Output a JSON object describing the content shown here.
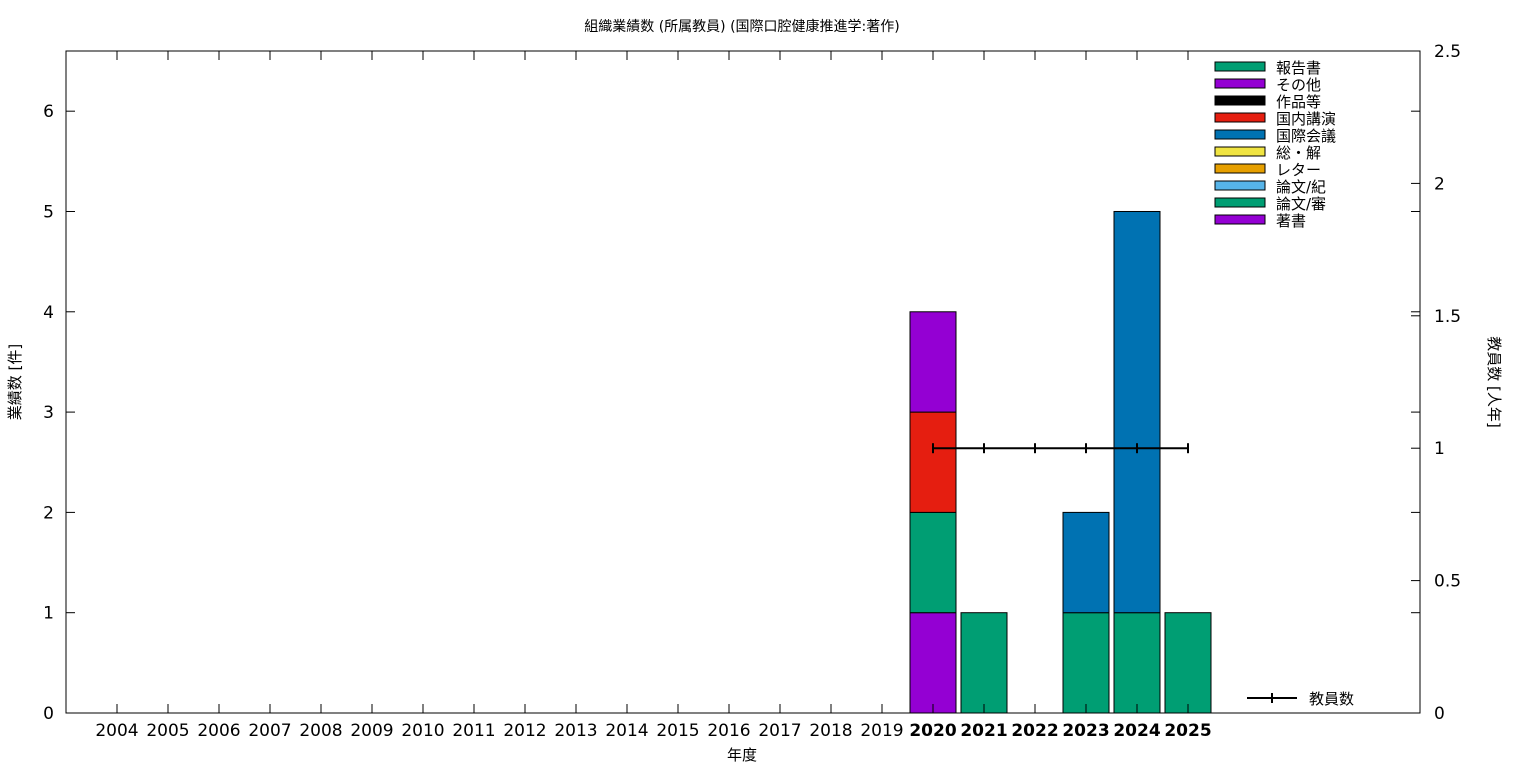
{
  "chart_data": {
    "type": "bar",
    "title": "組織業績数 (所属教員) (国際口腔健康推進学:著作)",
    "xlabel": "年度",
    "ylabel": "業績数 [件]",
    "y2label": "教員数 [人年]",
    "ylim": [
      0,
      6.6
    ],
    "y2lim": [
      0,
      2.5
    ],
    "yticks": [
      "0",
      "1",
      "2",
      "3",
      "4",
      "5",
      "6"
    ],
    "y2ticks": [
      "0",
      "0.5",
      "1",
      "1.5",
      "2",
      "2.5"
    ],
    "stacked": true,
    "categories": [
      "2004",
      "2005",
      "2006",
      "2007",
      "2008",
      "2009",
      "2010",
      "2011",
      "2012",
      "2013",
      "2014",
      "2015",
      "2016",
      "2017",
      "2018",
      "2019",
      "2020",
      "2021",
      "2022",
      "2023",
      "2024",
      "2025"
    ],
    "highlight_categories": [
      "2020",
      "2021",
      "2022",
      "2023",
      "2024",
      "2025"
    ],
    "legend_position": "top-right",
    "series": [
      {
        "name": "著書",
        "color": "#9400d3",
        "values": [
          0,
          0,
          0,
          0,
          0,
          0,
          0,
          0,
          0,
          0,
          0,
          0,
          0,
          0,
          0,
          0,
          1,
          0,
          0,
          0,
          0,
          0
        ]
      },
      {
        "name": "論文/審",
        "color": "#009e73",
        "values": [
          0,
          0,
          0,
          0,
          0,
          0,
          0,
          0,
          0,
          0,
          0,
          0,
          0,
          0,
          0,
          0,
          1,
          1,
          0,
          1,
          1,
          1
        ]
      },
      {
        "name": "論文/紀",
        "color": "#56b4e9",
        "values": [
          0,
          0,
          0,
          0,
          0,
          0,
          0,
          0,
          0,
          0,
          0,
          0,
          0,
          0,
          0,
          0,
          0,
          0,
          0,
          0,
          0,
          0
        ]
      },
      {
        "name": "レター",
        "color": "#e69f00",
        "values": [
          0,
          0,
          0,
          0,
          0,
          0,
          0,
          0,
          0,
          0,
          0,
          0,
          0,
          0,
          0,
          0,
          0,
          0,
          0,
          0,
          0,
          0
        ]
      },
      {
        "name": "総・解",
        "color": "#f0e442",
        "values": [
          0,
          0,
          0,
          0,
          0,
          0,
          0,
          0,
          0,
          0,
          0,
          0,
          0,
          0,
          0,
          0,
          0,
          0,
          0,
          0,
          0,
          0
        ]
      },
      {
        "name": "国際会議",
        "color": "#0072b2",
        "values": [
          0,
          0,
          0,
          0,
          0,
          0,
          0,
          0,
          0,
          0,
          0,
          0,
          0,
          0,
          0,
          0,
          0,
          0,
          0,
          1,
          4,
          0
        ]
      },
      {
        "name": "国内講演",
        "color": "#e51e10",
        "values": [
          0,
          0,
          0,
          0,
          0,
          0,
          0,
          0,
          0,
          0,
          0,
          0,
          0,
          0,
          0,
          0,
          1,
          0,
          0,
          0,
          0,
          0
        ]
      },
      {
        "name": "作品等",
        "color": "#000000",
        "values": [
          0,
          0,
          0,
          0,
          0,
          0,
          0,
          0,
          0,
          0,
          0,
          0,
          0,
          0,
          0,
          0,
          0,
          0,
          0,
          0,
          0,
          0
        ]
      },
      {
        "name": "その他",
        "color": "#9400d3",
        "values": [
          0,
          0,
          0,
          0,
          0,
          0,
          0,
          0,
          0,
          0,
          0,
          0,
          0,
          0,
          0,
          0,
          1,
          0,
          0,
          0,
          0,
          0
        ]
      },
      {
        "name": "報告書",
        "color": "#009e73",
        "values": [
          0,
          0,
          0,
          0,
          0,
          0,
          0,
          0,
          0,
          0,
          0,
          0,
          0,
          0,
          0,
          0,
          0,
          0,
          0,
          0,
          0,
          0
        ]
      }
    ],
    "line_series": {
      "name": "教員数",
      "axis": "y2",
      "color": "#000000",
      "x": [
        "2020",
        "2021",
        "2022",
        "2023",
        "2024",
        "2025"
      ],
      "values": [
        1,
        1,
        1,
        1,
        1,
        1
      ]
    }
  }
}
